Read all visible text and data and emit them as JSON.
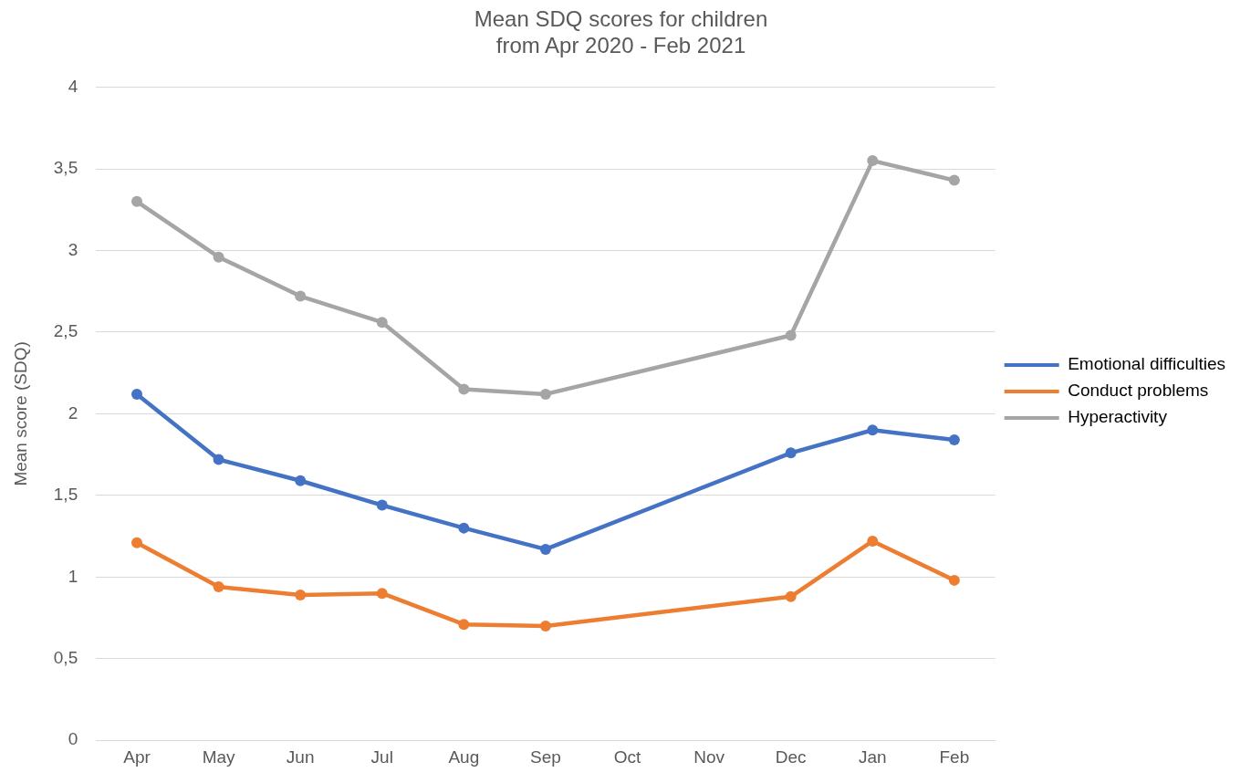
{
  "chart_data": {
    "type": "line",
    "title": "Mean SDQ scores for children\nfrom Apr 2020 - Feb 2021",
    "ylabel": "Mean score (SDQ)",
    "categories": [
      "Apr",
      "May",
      "Jun",
      "Jul",
      "Aug",
      "Sep",
      "Oct",
      "Nov",
      "Dec",
      "Jan",
      "Feb"
    ],
    "series": [
      {
        "name": "Emotional difficulties",
        "color": "#4472c4",
        "values": [
          2.12,
          1.72,
          1.59,
          1.44,
          1.3,
          1.17,
          null,
          null,
          1.76,
          1.9,
          1.84
        ]
      },
      {
        "name": "Conduct problems",
        "color": "#ed7d31",
        "values": [
          1.21,
          0.94,
          0.89,
          0.9,
          0.71,
          0.7,
          null,
          null,
          0.88,
          1.22,
          0.98
        ]
      },
      {
        "name": "Hyperactivity",
        "color": "#a5a5a5",
        "values": [
          3.3,
          2.96,
          2.72,
          2.56,
          2.15,
          2.12,
          null,
          null,
          2.48,
          3.55,
          3.43
        ]
      }
    ],
    "ylim": [
      0,
      4
    ],
    "yticks": [
      0,
      {
        "value": 0.5,
        "label": "0,5"
      },
      1,
      {
        "value": 1.5,
        "label": "1,5"
      },
      2,
      {
        "value": 2.5,
        "label": "2,5"
      },
      3,
      {
        "value": 3.5,
        "label": "3,5"
      },
      4
    ],
    "grid": "y",
    "legend": "right",
    "marker": "circle",
    "line_style": "solid"
  }
}
